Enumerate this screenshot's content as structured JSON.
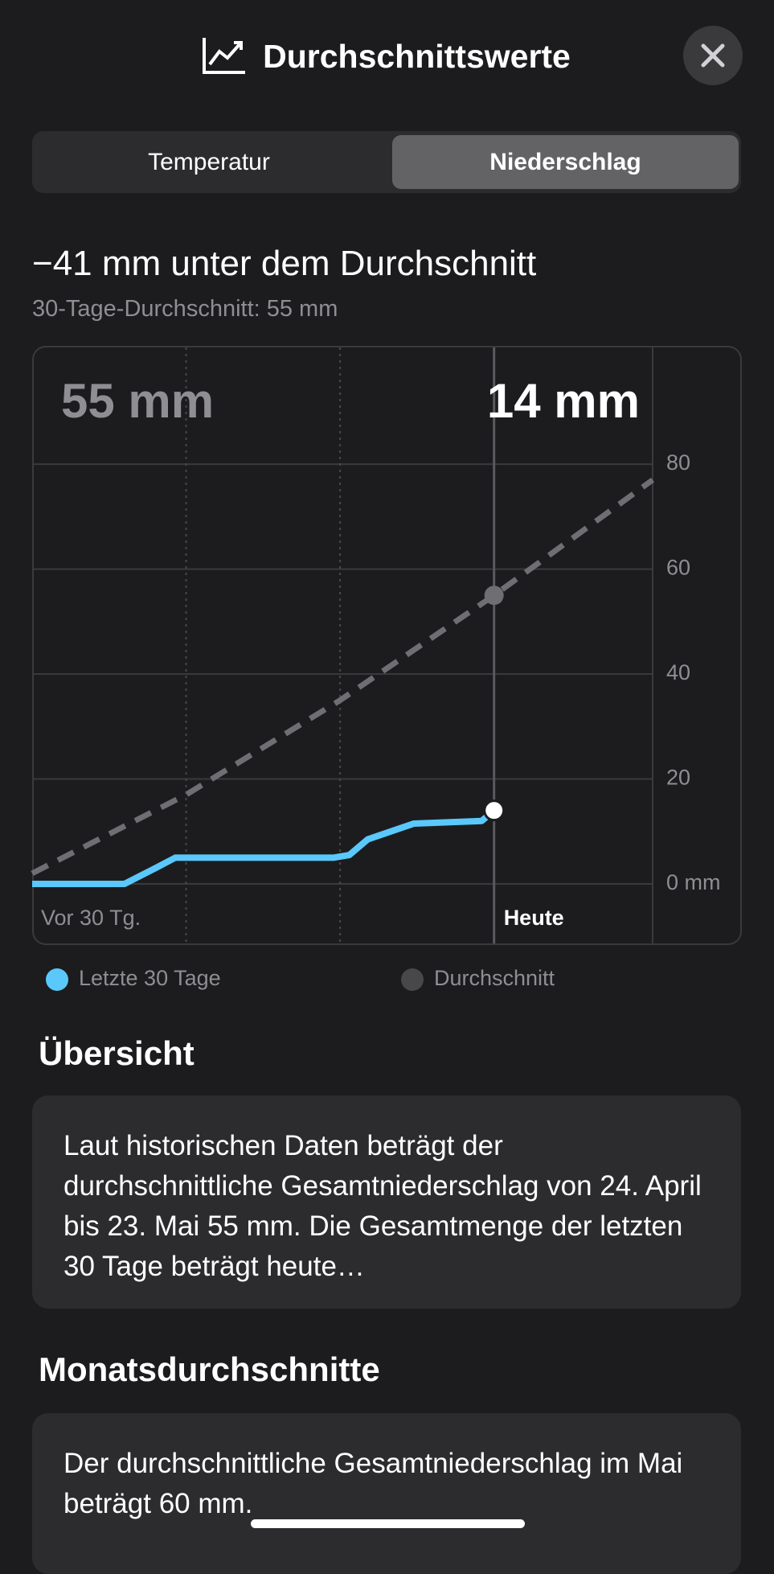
{
  "header": {
    "title": "Durchschnittswerte"
  },
  "tabs": [
    {
      "label": "Temperatur",
      "selected": false
    },
    {
      "label": "Niederschlag",
      "selected": true
    }
  ],
  "summary": {
    "headline": "−41 mm unter dem Durchschnitt",
    "subtitle": "30-Tage-Durchschnitt: 55 mm"
  },
  "chart_data": {
    "type": "line",
    "annotations": [
      "55 mm",
      "14 mm"
    ],
    "xlim": [
      -30,
      10.3
    ],
    "ylim": [
      -11.5,
      102.4
    ],
    "xticks": [
      {
        "value": -30,
        "label": "Vor 30 Tg."
      },
      {
        "value": -20,
        "label": null
      },
      {
        "value": -10,
        "label": null
      },
      {
        "value": 0,
        "label": "Heute"
      }
    ],
    "yticks": [
      {
        "value": 0,
        "label": "0 mm"
      },
      20,
      40,
      60,
      80
    ],
    "grid": true,
    "series": [
      {
        "name": "Letzte 30 Tage",
        "color": "#5ac8fa",
        "dashed": false,
        "x": [
          -30,
          -24,
          -22,
          -20.7,
          -10.4,
          -9.4,
          -8.2,
          -5.2,
          -0.8,
          0
        ],
        "values": [
          0,
          0,
          3,
          5,
          5,
          5.5,
          8.5,
          11.5,
          12,
          14
        ]
      },
      {
        "name": "Durchschnitt",
        "color": "#6e6e73",
        "dashed": true,
        "x": [
          -30,
          -20,
          -10,
          0,
          10.3
        ],
        "values": [
          2,
          17,
          35,
          55,
          77
        ]
      }
    ]
  },
  "sections": [
    {
      "title": "Übersicht",
      "text": "Laut historischen Daten beträgt der durchschnittliche Gesamtniederschlag von 24. April bis 23. Mai 55 mm. Die Gesamt­menge der letzten 30 Tage beträgt heute…"
    },
    {
      "title": "Monatsdurchschnitte",
      "text": "Der durchschnittliche Gesamtniederschlag im Mai beträgt 60 mm."
    }
  ]
}
